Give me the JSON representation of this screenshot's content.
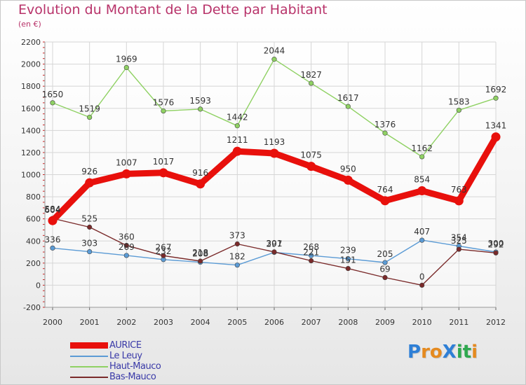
{
  "title": "Evolution du Montant de la Dette par Habitant",
  "subtitle": "(en €)",
  "logo": {
    "text": "ProXiti",
    "letters": [
      "P",
      "r",
      "o",
      "X",
      "i",
      "t",
      "i"
    ],
    "colors": [
      "#2e7fd6",
      "#e58a1f",
      "#e58a1f",
      "#2e7fd6",
      "#2fa84f",
      "#2fa84f",
      "#e58a1f"
    ]
  },
  "chart_data": {
    "type": "line",
    "title": "Evolution du Montant de la Dette par Habitant",
    "ylabel": "(en €)",
    "xlabel": "",
    "ylim": [
      -200,
      2200
    ],
    "yticks": [
      -200,
      0,
      200,
      400,
      600,
      800,
      1000,
      1200,
      1400,
      1600,
      1800,
      2000,
      2200
    ],
    "grid": true,
    "legend_position": "bottom-left",
    "x": [
      "2000",
      "2001",
      "2002",
      "2003",
      "2004",
      "2005",
      "2006",
      "2007",
      "2008",
      "2009",
      "2010",
      "2011",
      "2012"
    ],
    "series": [
      {
        "name": "AURICE",
        "color": "#e8100c",
        "emphasis": true,
        "values": [
          584,
          926,
          1007,
          1017,
          916,
          1211,
          1193,
          1075,
          950,
          764,
          854,
          763,
          1341
        ],
        "labels": [
          "584",
          "926",
          "1007",
          "1017",
          "916",
          "1211",
          "1193",
          "1075",
          "950",
          "764",
          "854",
          "763",
          "1341"
        ]
      },
      {
        "name": "Le Leuy",
        "color": "#5b9bd5",
        "values": [
          336,
          303,
          269,
          232,
          208,
          182,
          297,
          268,
          239,
          205,
          407,
          354,
          300
        ],
        "labels": [
          "336",
          "303",
          "269",
          "232",
          "208",
          "182",
          "297",
          "268",
          "239",
          "205",
          "407",
          "354",
          "300"
        ]
      },
      {
        "name": "Haut-Mauco",
        "color": "#8fd163",
        "values": [
          1650,
          1519,
          1969,
          1576,
          1593,
          1442,
          2044,
          1827,
          1617,
          1376,
          1162,
          1583,
          1692
        ],
        "labels": [
          "1650",
          "1519",
          "1969",
          "1576",
          "1593",
          "1442",
          "2044",
          "1827",
          "1617",
          "1376",
          "1162",
          "1583",
          "1692"
        ]
      },
      {
        "name": "Bas-Mauco",
        "color": "#7a2a2a",
        "values": [
          604,
          525,
          360,
          267,
          218,
          373,
          301,
          221,
          151,
          69,
          0,
          325,
          292
        ],
        "labels": [
          "604",
          "525",
          "360",
          "267",
          "218",
          "373",
          "301",
          "221",
          "151",
          "69",
          "0",
          "325",
          "292"
        ]
      }
    ]
  }
}
